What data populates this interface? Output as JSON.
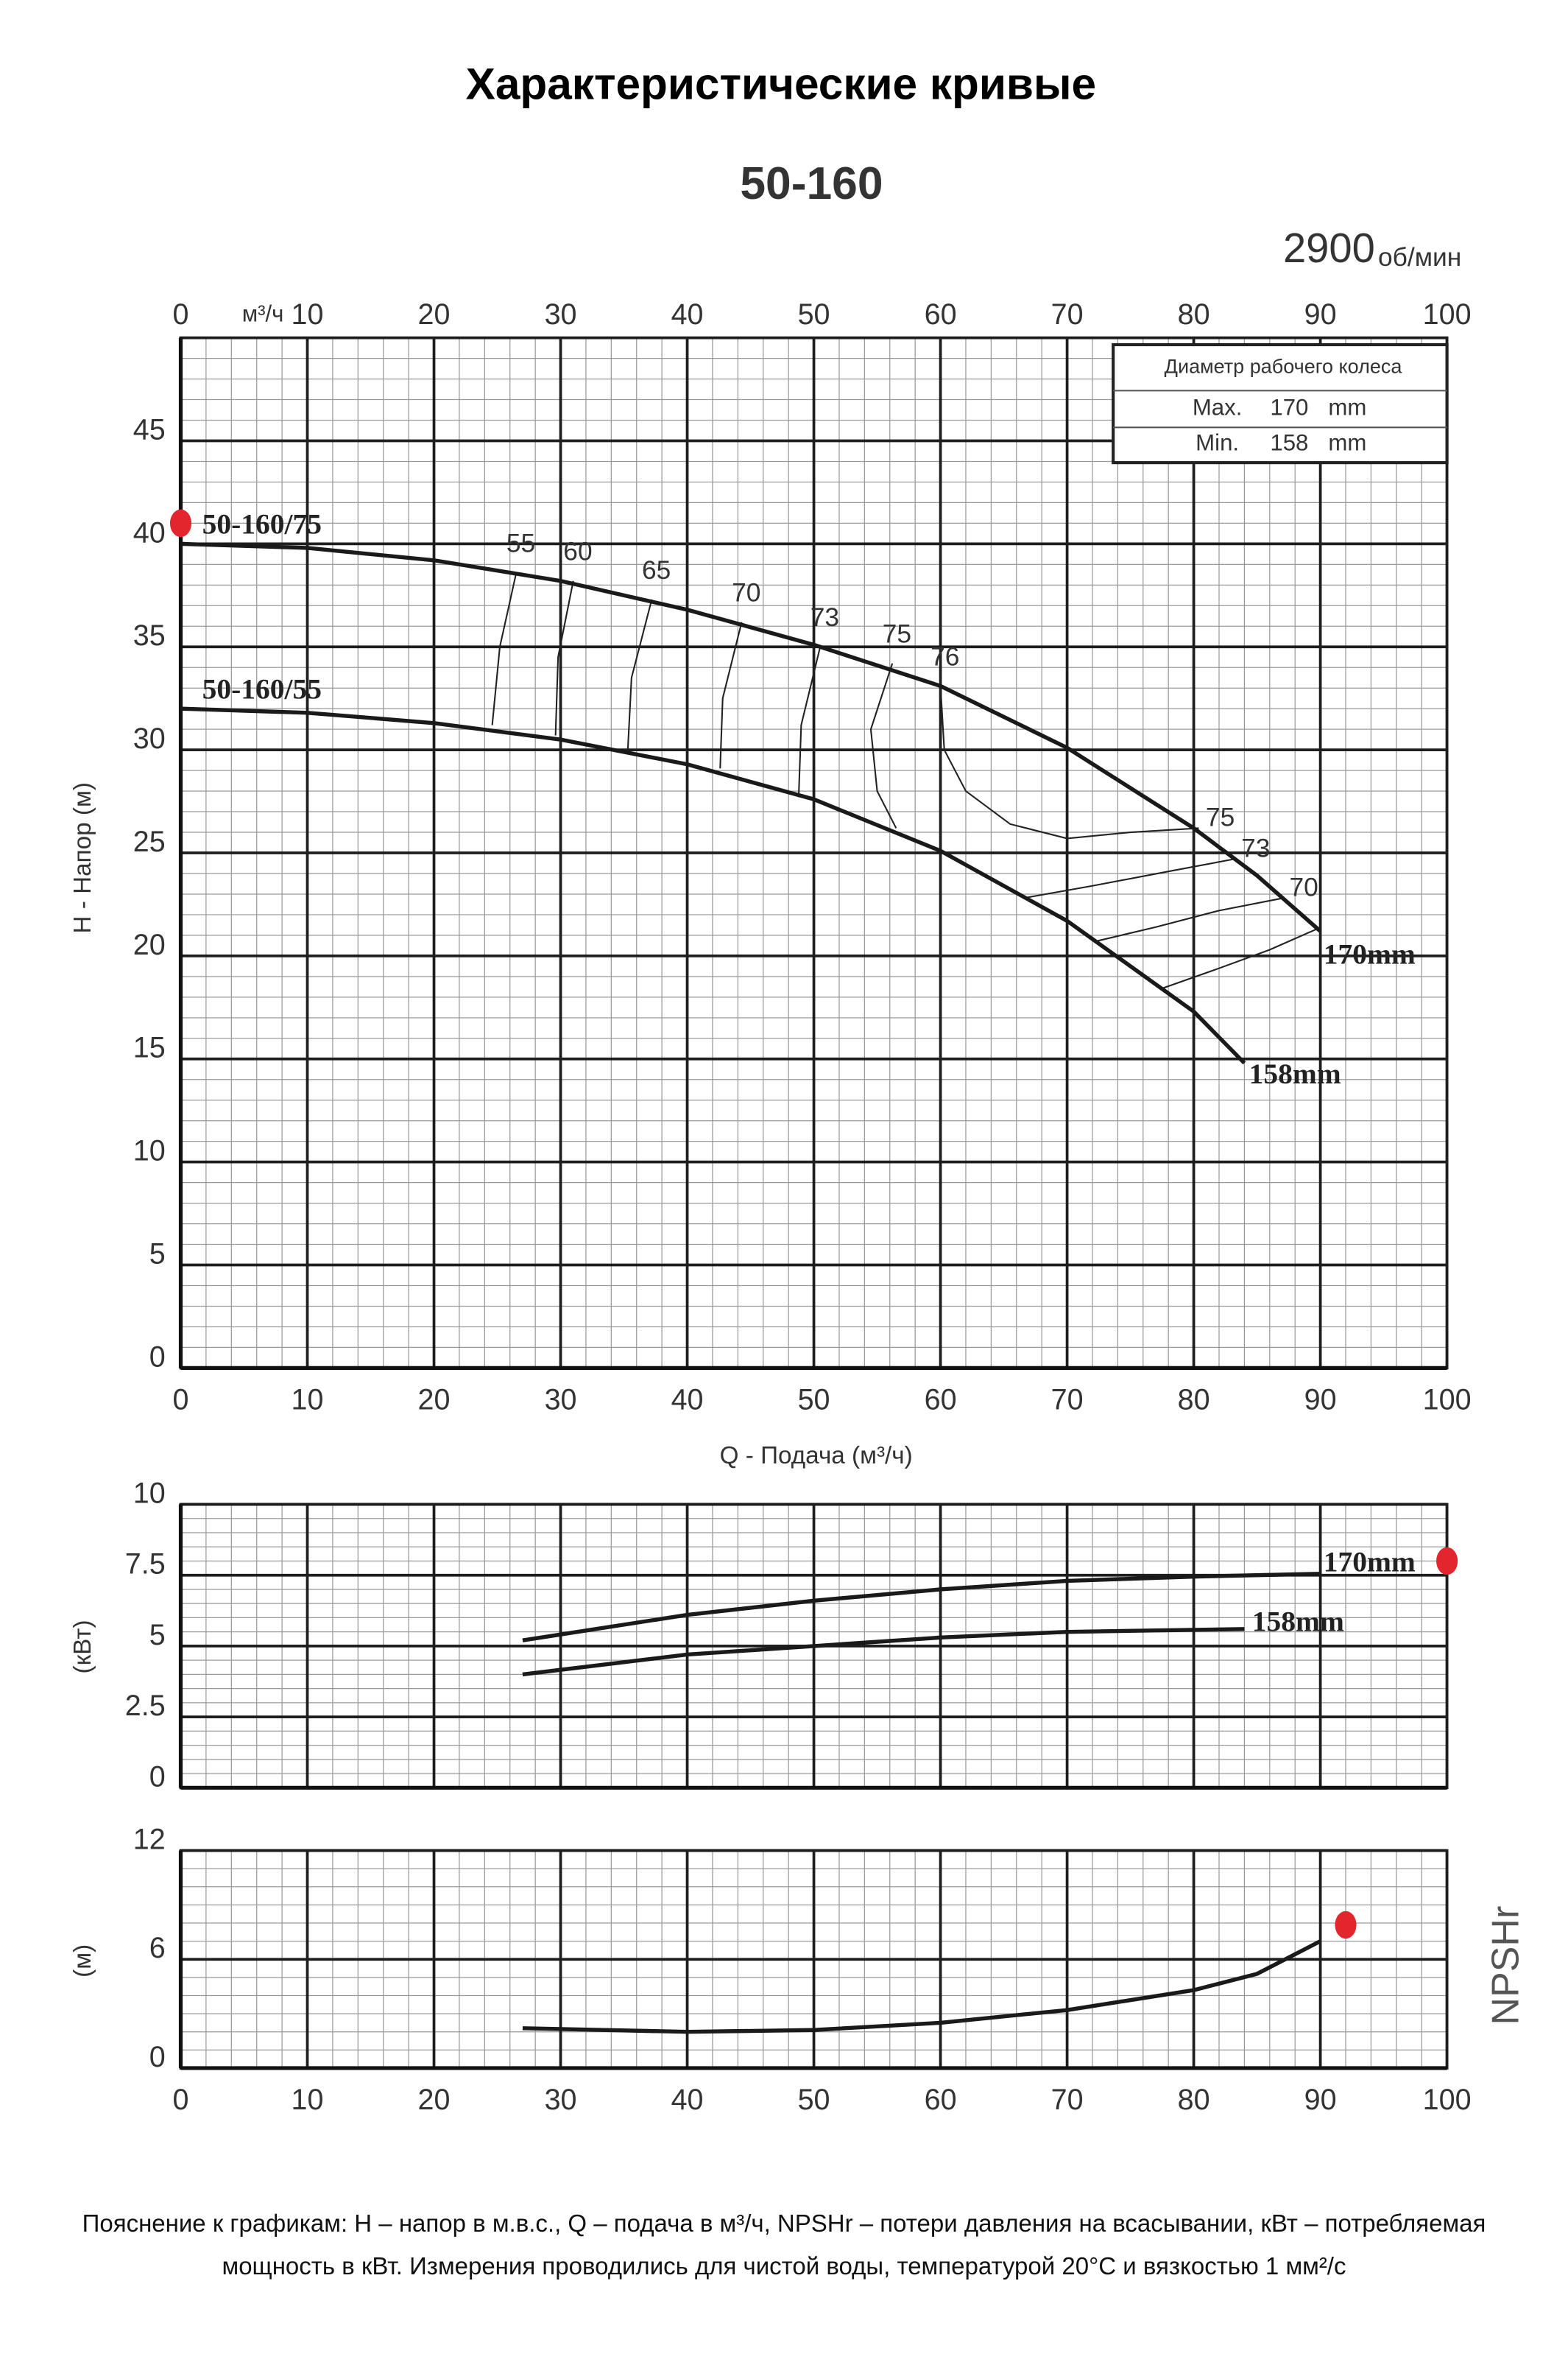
{
  "title": "Характеристические кривые",
  "model": "50-160",
  "speed": "2900",
  "speed_unit": "об/мин",
  "note": "Пояснение к графикам: H – напор в м.в.с., Q – подача в м³/ч, NPSHr – потери давления на всасывании, кВт – потребляемая мощность в кВт. Измерения проводились для чистой воды, температурой 20°C и вязкостью 1 мм²/с",
  "chart_data": [
    {
      "type": "line",
      "xlabel": "Q - Подача (м³/ч)",
      "ylabel": "H - Напор (м)",
      "x_unit": "м³/ч",
      "xlim": [
        0,
        100
      ],
      "xticks": [
        0,
        10,
        20,
        30,
        40,
        50,
        60,
        70,
        80,
        90,
        100
      ],
      "ylim": [
        0,
        50
      ],
      "yticks": [
        0,
        5,
        10,
        15,
        20,
        25,
        30,
        35,
        40,
        45
      ],
      "xtick_label_sides": [
        "top",
        "bottom"
      ],
      "grid": true,
      "minor_step": [
        2,
        1
      ],
      "series": [
        {
          "name": "170mm",
          "model": "50-160/75",
          "color": "#1a1a1a",
          "x": [
            0,
            10,
            20,
            30,
            40,
            50,
            60,
            70,
            80,
            85,
            90
          ],
          "values": [
            40,
            39.8,
            39.2,
            38.2,
            36.8,
            35.1,
            33.1,
            30.1,
            26.2,
            23.9,
            21.2
          ]
        },
        {
          "name": "158mm",
          "model": "50-160/55",
          "color": "#1a1a1a",
          "x": [
            0,
            10,
            20,
            30,
            40,
            50,
            60,
            70,
            80,
            84
          ],
          "values": [
            32,
            31.8,
            31.3,
            30.5,
            29.3,
            27.6,
            25.1,
            21.7,
            17.3,
            14.8
          ]
        }
      ],
      "efficiency_curves": [
        {
          "label": 55,
          "x": [
            26.5,
            25.2,
            24.6
          ],
          "values": [
            38.6,
            35,
            31.2
          ]
        },
        {
          "label": 60,
          "x": [
            31,
            29.8,
            29.6
          ],
          "values": [
            38.2,
            34.5,
            30.7
          ]
        },
        {
          "label": 65,
          "x": [
            37.2,
            35.6,
            35.3
          ],
          "values": [
            37.3,
            33.5,
            29.9
          ]
        },
        {
          "label": 70,
          "x": [
            44.3,
            42.8,
            42.6
          ],
          "values": [
            36.2,
            32.5,
            29.1
          ]
        },
        {
          "label": 73,
          "x": [
            50.5,
            49,
            48.8
          ],
          "values": [
            35,
            31.2,
            27.7
          ]
        },
        {
          "label": 75,
          "x": [
            56.2,
            54.5,
            55,
            56.5
          ],
          "values": [
            34.2,
            31,
            28,
            26.2
          ]
        },
        {
          "label": 76,
          "end_label": 75,
          "x": [
            60,
            60.3,
            62,
            65.5,
            70,
            75,
            80.4
          ],
          "values": [
            33.1,
            30,
            28,
            26.4,
            25.7,
            26,
            26.2
          ]
        },
        {
          "end_label": 73,
          "x": [
            66.5,
            72,
            78,
            83.2
          ],
          "values": [
            22.8,
            23.4,
            24.1,
            24.7
          ]
        },
        {
          "end_label": 70,
          "x": [
            72.2,
            77,
            82,
            87
          ],
          "values": [
            20.7,
            21.4,
            22.2,
            22.8
          ]
        },
        {
          "x": [
            77.4,
            82,
            86,
            89.7
          ],
          "values": [
            18.4,
            19.4,
            20.3,
            21.3
          ]
        }
      ],
      "impeller_table": {
        "title": "Диаметр рабочего колеса",
        "rows": [
          [
            "Max.",
            170,
            "mm"
          ],
          [
            "Min.",
            158,
            "mm"
          ]
        ]
      },
      "markers": [
        {
          "x": 0,
          "y": 41,
          "color": "#e3262d"
        }
      ]
    },
    {
      "type": "line",
      "ylabel": "(кВт)",
      "xlim": [
        0,
        100
      ],
      "xticks": [
        0,
        10,
        20,
        30,
        40,
        50,
        60,
        70,
        80,
        90,
        100
      ],
      "ylim": [
        0,
        10
      ],
      "yticks": [
        0,
        2.5,
        5,
        7.5,
        10
      ],
      "xtick_label_sides": [],
      "grid": true,
      "minor_step": [
        2,
        0.5
      ],
      "series": [
        {
          "name": "170mm",
          "color": "#1a1a1a",
          "x": [
            27,
            40,
            50,
            60,
            70,
            80,
            90
          ],
          "values": [
            5.2,
            6.1,
            6.6,
            7,
            7.3,
            7.45,
            7.55
          ]
        },
        {
          "name": "158mm",
          "color": "#1a1a1a",
          "x": [
            27,
            40,
            50,
            60,
            70,
            84
          ],
          "values": [
            4,
            4.7,
            5,
            5.3,
            5.5,
            5.6
          ]
        }
      ],
      "markers": [
        {
          "x": 100,
          "y": 8,
          "color": "#e3262d"
        }
      ]
    },
    {
      "type": "line",
      "ylabel": "(м)",
      "xlim": [
        0,
        100
      ],
      "xticks": [
        0,
        10,
        20,
        30,
        40,
        50,
        60,
        70,
        80,
        90,
        100
      ],
      "ylim": [
        0,
        12
      ],
      "yticks": [
        0,
        6,
        12
      ],
      "xtick_label_sides": [
        "bottom"
      ],
      "grid": true,
      "minor_step": [
        2,
        1
      ],
      "series": [
        {
          "name": "NPSHr",
          "color": "#1a1a1a",
          "x": [
            27,
            40,
            50,
            60,
            70,
            80,
            85,
            90
          ],
          "values": [
            2.2,
            2,
            2.1,
            2.5,
            3.2,
            4.3,
            5.2,
            7
          ]
        }
      ],
      "markers": [
        {
          "x": 92,
          "y": 7.9,
          "color": "#e3262d"
        }
      ]
    }
  ]
}
